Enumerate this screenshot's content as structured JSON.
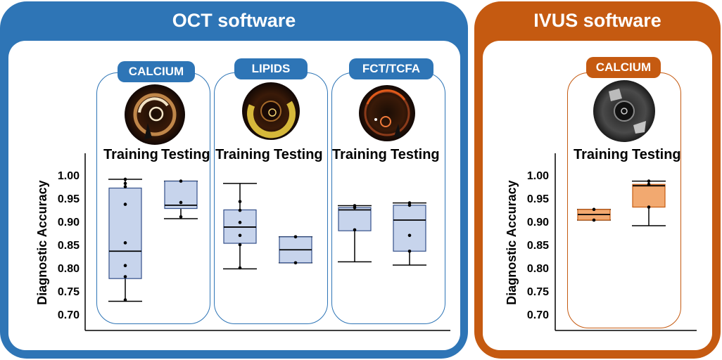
{
  "panels": {
    "oct": {
      "title": "OCT software",
      "color": "#2e75b6"
    },
    "ivus": {
      "title": "IVUS software",
      "color": "#c55a11"
    }
  },
  "cards": {
    "calcium": {
      "label": "CALCIUM",
      "image": "oct-calcium-cross-section"
    },
    "lipids": {
      "label": "LIPIDS",
      "image": "oct-lipids-cross-section"
    },
    "fct": {
      "label": "FCT/TCFA",
      "image": "oct-fct-tcfa-cross-section"
    },
    "ivus_calcium": {
      "label": "CALCIUM",
      "image": "ivus-calcium-cross-section"
    }
  },
  "groups": {
    "training": "Training",
    "testing": "Testing"
  },
  "chart_data": [
    {
      "type": "box",
      "ylabel": "Diagnostic Accuracy",
      "ylim": [
        0.7,
        1.0
      ],
      "yticks": [
        "1.00",
        "0.95",
        "0.90",
        "0.85",
        "0.80",
        "0.75",
        "0.70"
      ],
      "categories": [
        "CALCIUM Training",
        "CALCIUM Testing",
        "LIPIDS Training",
        "LIPIDS Testing",
        "FCT/TCFA Training",
        "FCT/TCFA Testing"
      ],
      "boxes": [
        {
          "category": "CALCIUM Training",
          "whisker_low": 0.728,
          "q1": 0.777,
          "median": 0.836,
          "q3": 0.972,
          "whisker_high": 0.991,
          "points": [
            0.991,
            0.982,
            0.975,
            0.937,
            0.854,
            0.805,
            0.781,
            0.731
          ]
        },
        {
          "category": "CALCIUM Testing",
          "whisker_low": 0.906,
          "q1": 0.928,
          "median": 0.935,
          "q3": 0.987,
          "whisker_high": 0.987,
          "points": [
            0.987,
            0.941,
            0.91
          ]
        },
        {
          "category": "LIPIDS Training",
          "whisker_low": 0.798,
          "q1": 0.853,
          "median": 0.888,
          "q3": 0.925,
          "whisker_high": 0.982,
          "points": [
            0.943,
            0.924,
            0.898,
            0.87,
            0.85,
            0.8
          ]
        },
        {
          "category": "LIPIDS Testing",
          "whisker_low": 0.811,
          "q1": 0.811,
          "median": 0.839,
          "q3": 0.867,
          "whisker_high": 0.867,
          "points": [
            0.867,
            0.811
          ]
        },
        {
          "category": "FCT/TCFA Training",
          "whisker_low": 0.813,
          "q1": 0.88,
          "median": 0.925,
          "q3": 0.93,
          "whisker_high": 0.934,
          "points": [
            0.934,
            0.93,
            0.882
          ]
        },
        {
          "category": "FCT/TCFA Testing",
          "whisker_low": 0.806,
          "q1": 0.836,
          "median": 0.903,
          "q3": 0.935,
          "whisker_high": 0.94,
          "points": [
            0.94,
            0.935,
            0.87,
            0.836
          ]
        }
      ]
    },
    {
      "type": "box",
      "ylabel": "Diagnostic Accuracy",
      "ylim": [
        0.7,
        1.0
      ],
      "yticks": [
        "1.00",
        "0.95",
        "0.90",
        "0.85",
        "0.80",
        "0.75",
        "0.70"
      ],
      "categories": [
        "CALCIUM Training",
        "CALCIUM Testing"
      ],
      "boxes": [
        {
          "category": "CALCIUM Training",
          "whisker_low": 0.903,
          "q1": 0.903,
          "median": 0.915,
          "q3": 0.926,
          "whisker_high": 0.926,
          "points": [
            0.926,
            0.903
          ]
        },
        {
          "category": "CALCIUM Testing",
          "whisker_low": 0.891,
          "q1": 0.931,
          "median": 0.977,
          "q3": 0.98,
          "whisker_high": 0.987,
          "points": [
            0.987,
            0.98,
            0.931
          ]
        }
      ]
    }
  ]
}
